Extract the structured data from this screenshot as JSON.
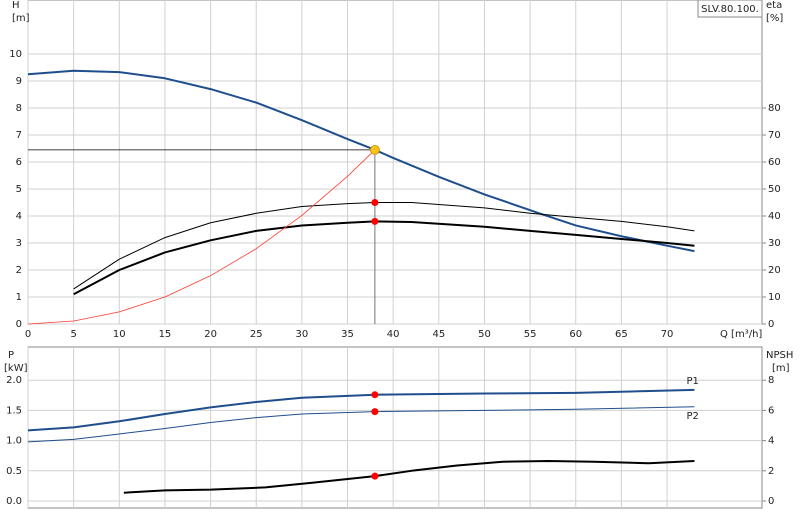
{
  "chart_data": [
    {
      "type": "line",
      "ylabel": "H",
      "yunit": "[m]",
      "y2label": "eta",
      "y2unit": "[%]",
      "xlabel": "Q [m³/h]",
      "annotation": "SLV.80.100.",
      "xlim": [
        0,
        80.4
      ],
      "xticks": [
        0,
        5,
        10,
        15,
        20,
        25,
        30,
        35,
        40,
        45,
        50,
        55,
        60,
        65,
        70
      ],
      "ylim": [
        0,
        12
      ],
      "yticks": [
        0,
        1,
        2,
        3,
        4,
        5,
        6,
        7,
        8,
        9,
        10
      ],
      "y2lim": [
        0,
        120
      ],
      "y2ticks": [
        0,
        10,
        20,
        30,
        40,
        50,
        60,
        70,
        80
      ],
      "grid": true,
      "xticklabels": true,
      "series": [
        {
          "color": "#1f4e8c",
          "width": 2,
          "x": [
            0,
            5,
            10,
            15,
            20,
            25,
            30,
            35,
            38,
            40,
            45,
            50,
            56,
            60,
            65,
            70,
            73
          ],
          "values": [
            9.25,
            9.38,
            9.33,
            9.1,
            8.7,
            8.2,
            7.55,
            6.85,
            6.45,
            6.15,
            5.45,
            4.8,
            4.1,
            3.65,
            3.25,
            2.9,
            2.7
          ]
        },
        {
          "color": "#000000",
          "width": 1,
          "axis": "y2",
          "x": [
            5,
            10,
            15,
            20,
            25,
            30,
            35,
            38,
            42,
            50,
            55,
            60,
            65,
            70,
            73
          ],
          "values": [
            13,
            24,
            32,
            37.5,
            41,
            43.5,
            44.6,
            45,
            45,
            43,
            41,
            39.5,
            38,
            36,
            34.5
          ]
        },
        {
          "color": "#000000",
          "width": 2,
          "axis": "y2",
          "x": [
            5,
            10,
            15,
            20,
            25,
            30,
            35,
            38,
            42,
            50,
            55,
            60,
            65,
            70,
            73
          ],
          "values": [
            11,
            20,
            26.5,
            31,
            34.5,
            36.5,
            37.5,
            38,
            37.8,
            36,
            34.5,
            33,
            31.5,
            30,
            29
          ]
        },
        {
          "color": "#ff3b30",
          "width": 0.8,
          "x": [
            0,
            5,
            10,
            15,
            20,
            25,
            30,
            35,
            38
          ],
          "values": [
            0,
            0.11,
            0.45,
            1.0,
            1.79,
            2.79,
            4.02,
            5.47,
            6.45
          ]
        }
      ],
      "duty_point": {
        "x": 38,
        "y": 6.45,
        "color": "#f5c518"
      },
      "markers": [
        {
          "x": 38,
          "y": 45,
          "axis": "y2",
          "color": "#ff0000"
        },
        {
          "x": 38,
          "y": 38,
          "axis": "y2",
          "color": "#ff0000"
        }
      ]
    },
    {
      "type": "line",
      "ylabel": "P",
      "yunit": "[kW]",
      "y2label": "NPSH",
      "y2unit": "[m]",
      "xlim": [
        0,
        80.4
      ],
      "xticks": [
        0,
        5,
        10,
        15,
        20,
        25,
        30,
        35,
        40,
        45,
        50,
        55,
        60,
        65,
        70
      ],
      "ylim": [
        0,
        2.55
      ],
      "yticks": [
        {
          "value": 0,
          "label": "0.0"
        },
        {
          "value": 0.5,
          "label": "0.5"
        },
        {
          "value": 1,
          "label": "1.0"
        },
        {
          "value": 1.5,
          "label": "1.5"
        },
        {
          "value": 2,
          "label": "2.0"
        }
      ],
      "y2lim": [
        0,
        10.2
      ],
      "y2ticks": [
        0,
        2,
        4,
        6,
        8
      ],
      "grid": true,
      "xticklabels": false,
      "series": [
        {
          "name": "P1",
          "color": "#1f4e8c",
          "width": 2,
          "x": [
            0,
            5,
            10,
            15,
            20,
            25,
            30,
            38,
            50,
            60,
            73
          ],
          "values": [
            1.17,
            1.22,
            1.32,
            1.44,
            1.55,
            1.64,
            1.71,
            1.76,
            1.78,
            1.79,
            1.84
          ]
        },
        {
          "name": "P2",
          "color": "#1f4e8c",
          "width": 1,
          "x": [
            0,
            5,
            10,
            15,
            20,
            25,
            30,
            38,
            50,
            60,
            73
          ],
          "values": [
            0.98,
            1.02,
            1.11,
            1.2,
            1.3,
            1.38,
            1.44,
            1.48,
            1.5,
            1.52,
            1.56
          ]
        },
        {
          "color": "#000000",
          "width": 2,
          "axis": "y2",
          "x": [
            10.5,
            15,
            20,
            26,
            31,
            38,
            42,
            47,
            52,
            57,
            62,
            68,
            73
          ],
          "values": [
            0.55,
            0.7,
            0.75,
            0.9,
            1.2,
            1.65,
            2.0,
            2.35,
            2.6,
            2.65,
            2.6,
            2.5,
            2.65
          ]
        }
      ],
      "markers": [
        {
          "x": 38,
          "y": 1.76,
          "color": "#ff0000"
        },
        {
          "x": 38,
          "y": 1.48,
          "color": "#ff0000"
        },
        {
          "x": 38,
          "y": 1.65,
          "axis": "y2",
          "color": "#ff0000"
        }
      ]
    }
  ]
}
